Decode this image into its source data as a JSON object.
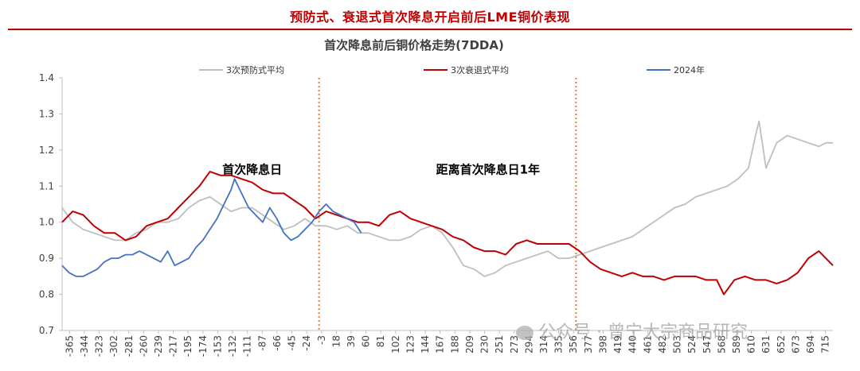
{
  "header": {
    "title": "预防式、衰退式首次降息开启前后LME铜价表现"
  },
  "watermark": {
    "text": "公众号 · 曾宁大宗商品研究"
  },
  "chart_data": {
    "type": "line",
    "title": "首次降息前后铜价格走势(7DDA)",
    "xlabel": "",
    "ylabel": "",
    "xlim": [
      -365,
      730
    ],
    "ylim": [
      0.7,
      1.4
    ],
    "y_ticks": [
      0.7,
      0.8,
      0.9,
      1.0,
      1.1,
      1.2,
      1.3,
      1.4
    ],
    "x_ticks": [
      "-365",
      "-344",
      "-323",
      "-302",
      "-281",
      "-260",
      "-239",
      "-217",
      "-195",
      "-174",
      "-153",
      "-132",
      "-111",
      "-87",
      "-66",
      "-45",
      "-24",
      "-3",
      "18",
      "39",
      "60",
      "81",
      "102",
      "123",
      "144",
      "167",
      "188",
      "209",
      "230",
      "251",
      "273",
      "294",
      "314",
      "335",
      "356",
      "377",
      "398",
      "419",
      "440",
      "461",
      "482",
      "503",
      "524",
      "547",
      "568",
      "589",
      "610",
      "631",
      "652",
      "673",
      "694",
      "715"
    ],
    "grid": false,
    "legend_position": "top",
    "vlines": [
      {
        "x": 0,
        "color": "#ed7d31"
      },
      {
        "x": 365,
        "color": "#ed7d31"
      }
    ],
    "annotations": [
      {
        "text": "首次降息日",
        "x": -95,
        "y": 1.135
      },
      {
        "text": "距离首次降息日1年",
        "x": 240,
        "y": 1.135
      }
    ],
    "series": [
      {
        "name": "3次预防式平均",
        "color": "#bfbfbf",
        "x": [
          -365,
          -350,
          -335,
          -320,
          -305,
          -290,
          -275,
          -260,
          -245,
          -230,
          -215,
          -200,
          -185,
          -170,
          -155,
          -140,
          -125,
          -110,
          -95,
          -80,
          -65,
          -50,
          -35,
          -20,
          -5,
          10,
          25,
          40,
          55,
          70,
          85,
          100,
          115,
          130,
          145,
          160,
          175,
          190,
          205,
          220,
          235,
          250,
          265,
          280,
          295,
          310,
          325,
          340,
          355,
          370,
          385,
          400,
          415,
          430,
          445,
          460,
          475,
          490,
          505,
          520,
          535,
          550,
          565,
          580,
          595,
          610,
          620,
          625,
          635,
          650,
          665,
          680,
          695,
          710,
          720,
          730
        ],
        "values": [
          1.04,
          1.0,
          0.98,
          0.97,
          0.96,
          0.95,
          0.95,
          0.97,
          0.98,
          1.0,
          1.0,
          1.01,
          1.04,
          1.06,
          1.07,
          1.05,
          1.03,
          1.04,
          1.04,
          1.02,
          1.0,
          0.98,
          0.99,
          1.01,
          0.99,
          0.99,
          0.98,
          0.99,
          0.97,
          0.97,
          0.96,
          0.95,
          0.95,
          0.96,
          0.98,
          0.99,
          0.97,
          0.93,
          0.88,
          0.87,
          0.85,
          0.86,
          0.88,
          0.89,
          0.9,
          0.91,
          0.92,
          0.9,
          0.9,
          0.91,
          0.92,
          0.93,
          0.94,
          0.95,
          0.96,
          0.98,
          1.0,
          1.02,
          1.04,
          1.05,
          1.07,
          1.08,
          1.09,
          1.1,
          1.12,
          1.15,
          1.24,
          1.28,
          1.15,
          1.22,
          1.24,
          1.23,
          1.22,
          1.21,
          1.22,
          1.22
        ]
      },
      {
        "name": "3次衰退式平均",
        "color": "#c00000",
        "x": [
          -365,
          -350,
          -335,
          -320,
          -305,
          -290,
          -275,
          -260,
          -245,
          -230,
          -215,
          -200,
          -185,
          -170,
          -155,
          -140,
          -125,
          -110,
          -95,
          -80,
          -65,
          -50,
          -35,
          -20,
          -5,
          10,
          25,
          40,
          55,
          70,
          85,
          100,
          115,
          130,
          145,
          160,
          175,
          190,
          205,
          220,
          235,
          250,
          265,
          280,
          295,
          310,
          325,
          340,
          355,
          370,
          385,
          400,
          415,
          430,
          445,
          460,
          475,
          490,
          505,
          520,
          535,
          550,
          565,
          575,
          590,
          605,
          620,
          635,
          650,
          665,
          680,
          695,
          710,
          725,
          730
        ],
        "values": [
          1.0,
          1.03,
          1.02,
          0.99,
          0.97,
          0.97,
          0.95,
          0.96,
          0.99,
          1.0,
          1.01,
          1.04,
          1.07,
          1.1,
          1.14,
          1.13,
          1.13,
          1.12,
          1.11,
          1.09,
          1.08,
          1.08,
          1.06,
          1.04,
          1.01,
          1.03,
          1.02,
          1.01,
          1.0,
          1.0,
          0.99,
          1.02,
          1.03,
          1.01,
          1.0,
          0.99,
          0.98,
          0.96,
          0.95,
          0.93,
          0.92,
          0.92,
          0.91,
          0.94,
          0.95,
          0.94,
          0.94,
          0.94,
          0.94,
          0.92,
          0.89,
          0.87,
          0.86,
          0.85,
          0.86,
          0.85,
          0.85,
          0.84,
          0.85,
          0.85,
          0.85,
          0.84,
          0.84,
          0.8,
          0.84,
          0.85,
          0.84,
          0.84,
          0.83,
          0.84,
          0.86,
          0.9,
          0.92,
          0.89,
          0.88
        ]
      },
      {
        "name": "2024年",
        "color": "#4472c4",
        "x": [
          -365,
          -355,
          -345,
          -335,
          -325,
          -315,
          -305,
          -295,
          -285,
          -275,
          -265,
          -255,
          -245,
          -235,
          -225,
          -215,
          -205,
          -195,
          -185,
          -175,
          -165,
          -155,
          -145,
          -135,
          -125,
          -120,
          -110,
          -100,
          -90,
          -80,
          -70,
          -60,
          -50,
          -40,
          -30,
          -20,
          -10,
          0,
          10,
          20,
          30,
          40,
          50,
          60
        ],
        "values": [
          0.88,
          0.86,
          0.85,
          0.85,
          0.86,
          0.87,
          0.89,
          0.9,
          0.9,
          0.91,
          0.91,
          0.92,
          0.91,
          0.9,
          0.89,
          0.92,
          0.88,
          0.89,
          0.9,
          0.93,
          0.95,
          0.98,
          1.01,
          1.05,
          1.09,
          1.12,
          1.08,
          1.04,
          1.02,
          1.0,
          1.04,
          1.01,
          0.97,
          0.95,
          0.96,
          0.98,
          1.0,
          1.03,
          1.05,
          1.03,
          1.02,
          1.01,
          1.0,
          0.97
        ]
      }
    ]
  }
}
